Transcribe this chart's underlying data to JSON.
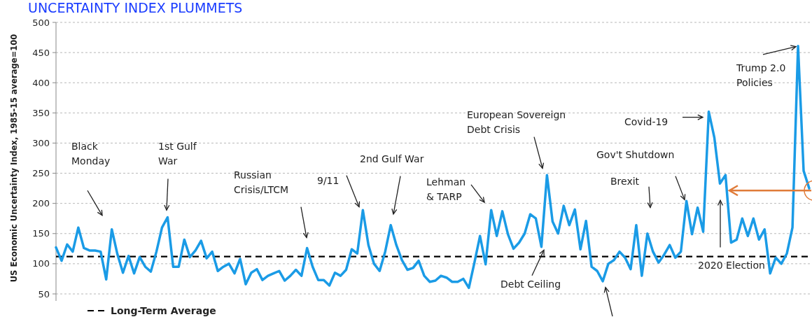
{
  "chart_data": {
    "type": "line",
    "title": "UNCERTAINTY INDEX PLUMMETS",
    "ylabel": "US Economic Uncertainty Index, 1985-15 average=100",
    "categories": [
      null,
      null,
      null,
      null,
      null,
      null,
      null,
      null,
      null,
      null,
      null,
      null,
      null,
      null,
      null,
      null,
      null,
      null,
      null,
      null,
      null,
      null,
      null,
      null,
      null,
      null,
      null,
      null,
      null,
      null,
      null,
      null,
      null,
      null,
      null,
      null,
      null,
      null,
      null,
      null,
      null,
      null,
      null,
      null,
      null,
      null,
      null,
      null,
      null,
      null,
      null,
      null,
      null,
      null,
      null,
      null,
      null,
      null,
      null,
      null,
      null,
      null,
      null,
      null,
      null,
      null,
      null,
      null,
      null,
      null,
      null,
      null,
      null,
      null,
      null,
      null,
      null,
      null,
      null,
      null,
      null,
      null,
      null,
      null,
      null,
      null,
      null,
      null,
      null,
      null,
      null,
      null,
      null,
      null,
      null,
      null,
      null,
      null,
      null,
      null,
      null,
      null,
      null,
      null,
      null,
      null,
      null,
      null,
      null,
      null,
      null,
      null,
      null,
      null,
      null,
      null,
      null,
      null,
      null,
      null,
      null,
      null,
      null,
      null,
      null,
      null,
      null,
      null,
      null,
      null,
      null,
      null,
      null,
      null,
      null,
      null
    ],
    "series": [
      {
        "color": "#1a9be6",
        "values": [
          127,
          105,
          132,
          120,
          160,
          126,
          122,
          122,
          120,
          74,
          157,
          116,
          85,
          113,
          84,
          111,
          95,
          87,
          120,
          160,
          177,
          95,
          95,
          140,
          111,
          122,
          138,
          109,
          120,
          88,
          95,
          100,
          84,
          108,
          66,
          85,
          91,
          73,
          80,
          84,
          88,
          72,
          80,
          90,
          80,
          126,
          95,
          73,
          73,
          64,
          85,
          80,
          90,
          124,
          117,
          189,
          131,
          100,
          88,
          120,
          164,
          131,
          106,
          90,
          93,
          105,
          80,
          70,
          72,
          80,
          77,
          70,
          70,
          75,
          60,
          102,
          146,
          99,
          189,
          146,
          187,
          149,
          125,
          135,
          150,
          182,
          175,
          128,
          247,
          170,
          150,
          196,
          164,
          190,
          124,
          171,
          95,
          88,
          71,
          100,
          106,
          120,
          110,
          91,
          164,
          80,
          150,
          120,
          102,
          115,
          131,
          110,
          120,
          204,
          149,
          193,
          153,
          352,
          309,
          233,
          247,
          135,
          140,
          175,
          146,
          175,
          140,
          157,
          84,
          110,
          100,
          117,
          160,
          461,
          254,
          225
        ]
      }
    ],
    "ylim": [
      50,
      500
    ],
    "yticks": [
      50,
      100,
      150,
      200,
      250,
      300,
      350,
      400,
      450,
      500
    ],
    "grid": "y",
    "line_style": "solid",
    "marker": "none",
    "ref_lines": [
      {
        "axis": "y",
        "value": 112,
        "label": "Long-Term Average",
        "color": "#000000",
        "line_style": "dashed"
      }
    ],
    "annotations": [
      "Black Monday",
      "1st Gulf War",
      "Russian Crisis/LTCM",
      "9/11",
      "2nd Gulf War",
      "Lehman & TARP",
      "European Sovereign Debt Crisis",
      "Debt Ceiling",
      "Covid-19",
      "Gov't Shutdown",
      "Brexit",
      "2020 Election",
      "Trump 2.0 Policies"
    ]
  }
}
